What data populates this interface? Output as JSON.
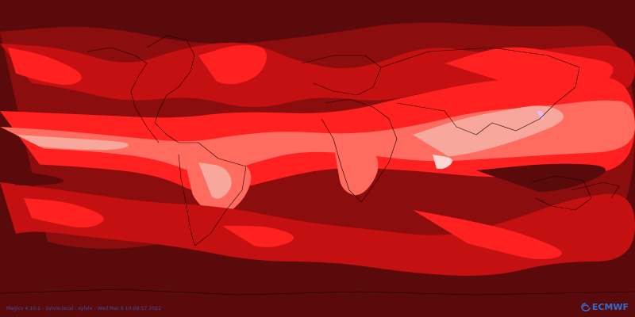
{
  "map": {
    "projection": "equirectangular-global",
    "background_color": "#5a0a0a",
    "palette": [
      "#5a0a0a",
      "#8b0d0d",
      "#c41010",
      "#ff2020",
      "#ff6b5e",
      "#f7a79c",
      "#fcd6d2",
      "#e8b8f0"
    ],
    "coastline_color": "#1a0000"
  },
  "footer": {
    "credit": "Magics 4.10.1 - Sylvie.local - sylvie - Wed Mar  9 10:08:57 2022"
  },
  "logo": {
    "text": "ECMWF",
    "color": "#2d6fd1",
    "icon": "ecmwf-swirl-icon"
  }
}
